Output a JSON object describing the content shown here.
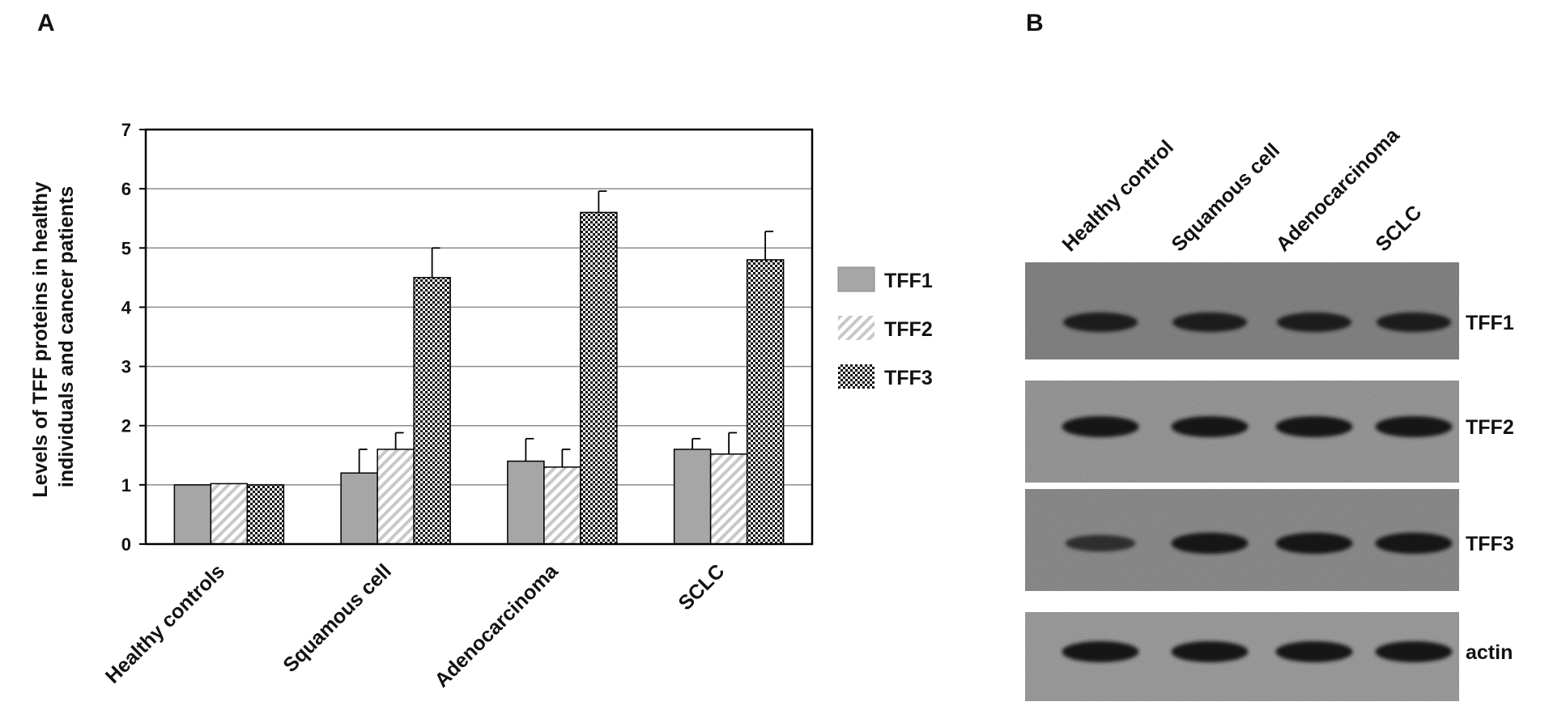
{
  "panel_a": {
    "label": "A"
  },
  "panel_b": {
    "label": "B",
    "lanes": [
      "Healthy control",
      "Squamous cell",
      "Adenocarcinoma",
      "SCLC"
    ],
    "blots": [
      {
        "name": "TFF1",
        "band_intensity": [
          0.85,
          0.85,
          0.85,
          0.85
        ]
      },
      {
        "name": "TFF2",
        "band_intensity": [
          1.0,
          1.0,
          1.0,
          1.0
        ]
      },
      {
        "name": "TFF3",
        "band_intensity": [
          0.55,
          1.0,
          1.0,
          1.0
        ]
      },
      {
        "name": "actin",
        "band_intensity": [
          1.0,
          1.0,
          1.0,
          1.0
        ]
      }
    ]
  },
  "chart_data": {
    "type": "bar",
    "title": "",
    "xlabel": "",
    "ylabel_lines": [
      "Levels of TFF proteins in healthy",
      "individuals and cancer patients"
    ],
    "categories": [
      "Healthy controls",
      "Squamous cell",
      "Adenocarcinoma",
      "SCLC"
    ],
    "series": [
      {
        "name": "TFF1",
        "values": [
          1.0,
          1.2,
          1.4,
          1.6
        ],
        "errors": [
          0,
          0.4,
          0.38,
          0.18
        ]
      },
      {
        "name": "TFF2",
        "values": [
          1.02,
          1.6,
          1.3,
          1.52
        ],
        "errors": [
          0,
          0.28,
          0.3,
          0.36
        ]
      },
      {
        "name": "TFF3",
        "values": [
          1.0,
          4.5,
          5.6,
          4.8
        ],
        "errors": [
          0,
          0.5,
          0.36,
          0.48
        ]
      }
    ],
    "ylim": [
      0,
      7
    ],
    "yticks": [
      "0",
      "1",
      "2",
      "3",
      "4",
      "5",
      "6",
      "7"
    ],
    "grid": true,
    "legend": "right",
    "colors": {
      "TFF1": "#a6a6a6",
      "TFF2": "#d0d0d0",
      "TFF3": "#000000"
    }
  }
}
